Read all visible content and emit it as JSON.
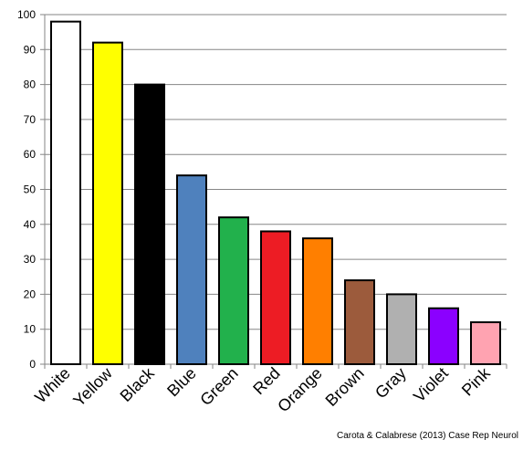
{
  "chart_data": {
    "type": "bar",
    "title": "",
    "xlabel": "",
    "ylabel": "",
    "ylim": [
      0,
      100
    ],
    "yticks": [
      0,
      10,
      20,
      30,
      40,
      50,
      60,
      70,
      80,
      90,
      100
    ],
    "grid": true,
    "legend": "none",
    "categories": [
      "White",
      "Yellow",
      "Black",
      "Blue",
      "Green",
      "Red",
      "Orange",
      "Brown",
      "Gray",
      "Violet",
      "Pink"
    ],
    "values": [
      98,
      92,
      80,
      54,
      42,
      38,
      36,
      24,
      20,
      16,
      12
    ],
    "colors": [
      "#ffffff",
      "#ffff00",
      "#000000",
      "#4f81bd",
      "#22b14c",
      "#ed1c24",
      "#ff7f00",
      "#9c5b3c",
      "#b0b0b0",
      "#8b00ff",
      "#ffa3b1"
    ],
    "annotation": "Carota & Calabrese (2013) Case Rep Neurol"
  }
}
